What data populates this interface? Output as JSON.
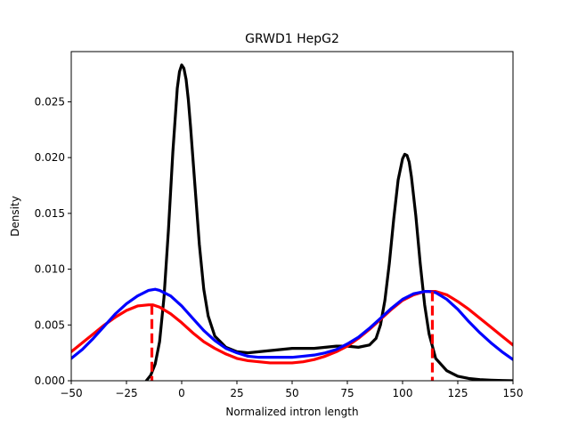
{
  "chart_data": {
    "type": "line",
    "title": "GRWD1 HepG2",
    "xlabel": "Normalized intron length",
    "ylabel": "Density",
    "xlim": [
      -50,
      150
    ],
    "ylim": [
      0,
      0.0295
    ],
    "x_ticks": [
      -50,
      -25,
      0,
      25,
      50,
      75,
      100,
      125,
      150
    ],
    "x_tick_labels": [
      "−50",
      "−25",
      "0",
      "25",
      "50",
      "75",
      "100",
      "125",
      "150"
    ],
    "y_ticks": [
      0,
      0.005,
      0.01,
      0.015,
      0.02,
      0.025
    ],
    "y_tick_labels": [
      "0.000",
      "0.005",
      "0.010",
      "0.015",
      "0.020",
      "0.025"
    ],
    "grid": false,
    "legend": false,
    "series": [
      {
        "color": "#000000",
        "x": [
          -16,
          -14,
          -12,
          -10,
          -8,
          -6,
          -4,
          -2,
          -1,
          0,
          1,
          2,
          3,
          4,
          6,
          8,
          10,
          12,
          15,
          20,
          25,
          30,
          35,
          40,
          45,
          50,
          55,
          60,
          65,
          70,
          75,
          80,
          85,
          88,
          90,
          92,
          94,
          96,
          98,
          100,
          101,
          102,
          103,
          104,
          106,
          108,
          110,
          112,
          115,
          120,
          125,
          130,
          135,
          140,
          145,
          150
        ],
        "y": [
          0.0,
          0.0005,
          0.0015,
          0.0035,
          0.0075,
          0.0135,
          0.0205,
          0.0262,
          0.0277,
          0.0283,
          0.028,
          0.027,
          0.0252,
          0.0228,
          0.0175,
          0.0122,
          0.0082,
          0.0058,
          0.004,
          0.003,
          0.0026,
          0.0025,
          0.0026,
          0.0027,
          0.0028,
          0.0029,
          0.0029,
          0.0029,
          0.003,
          0.0031,
          0.0031,
          0.003,
          0.0032,
          0.0038,
          0.005,
          0.0072,
          0.0105,
          0.0145,
          0.018,
          0.0199,
          0.0203,
          0.0202,
          0.0196,
          0.0183,
          0.0148,
          0.0105,
          0.0068,
          0.0042,
          0.002,
          0.0009,
          0.0004,
          0.0002,
          0.0001,
          5e-05,
          2e-05,
          0.0
        ]
      },
      {
        "color": "#ff0000",
        "x": [
          -50,
          -45,
          -40,
          -35,
          -30,
          -25,
          -20,
          -15,
          -13,
          -10,
          -5,
          0,
          5,
          10,
          15,
          20,
          25,
          30,
          35,
          40,
          45,
          50,
          55,
          60,
          65,
          70,
          75,
          80,
          85,
          90,
          95,
          100,
          105,
          110,
          113,
          115,
          120,
          125,
          130,
          135,
          140,
          145,
          150
        ],
        "y": [
          0.0026,
          0.0034,
          0.0042,
          0.005,
          0.0057,
          0.0063,
          0.0067,
          0.0068,
          0.0068,
          0.0066,
          0.006,
          0.0052,
          0.0043,
          0.0035,
          0.0029,
          0.0024,
          0.002,
          0.0018,
          0.0017,
          0.0016,
          0.0016,
          0.0016,
          0.0017,
          0.0019,
          0.0022,
          0.0026,
          0.0031,
          0.0038,
          0.0046,
          0.0055,
          0.0064,
          0.0072,
          0.0077,
          0.008,
          0.008,
          0.008,
          0.0077,
          0.0071,
          0.0064,
          0.0056,
          0.0048,
          0.004,
          0.0032
        ]
      },
      {
        "color": "#0000ff",
        "x": [
          -50,
          -45,
          -40,
          -35,
          -30,
          -25,
          -20,
          -15,
          -12,
          -10,
          -5,
          0,
          5,
          10,
          15,
          20,
          25,
          30,
          35,
          40,
          45,
          50,
          55,
          60,
          65,
          70,
          75,
          80,
          85,
          90,
          95,
          100,
          105,
          110,
          112,
          115,
          120,
          125,
          130,
          135,
          140,
          145,
          150
        ],
        "y": [
          0.002,
          0.0028,
          0.0038,
          0.0049,
          0.006,
          0.0069,
          0.0076,
          0.0081,
          0.0082,
          0.0081,
          0.0076,
          0.0067,
          0.0056,
          0.0045,
          0.0036,
          0.0029,
          0.0025,
          0.0022,
          0.0021,
          0.0021,
          0.0021,
          0.0021,
          0.0022,
          0.0023,
          0.0025,
          0.0028,
          0.0033,
          0.0039,
          0.0047,
          0.0056,
          0.0065,
          0.0073,
          0.0078,
          0.008,
          0.008,
          0.0079,
          0.0073,
          0.0064,
          0.0053,
          0.0043,
          0.0034,
          0.0026,
          0.0019
        ]
      }
    ],
    "markers": [
      {
        "color": "#ff0000",
        "x": -13.5,
        "y": 0.0068,
        "style": "dashed"
      },
      {
        "color": "#ff0000",
        "x": 113.5,
        "y": 0.008,
        "style": "dashed"
      }
    ]
  }
}
